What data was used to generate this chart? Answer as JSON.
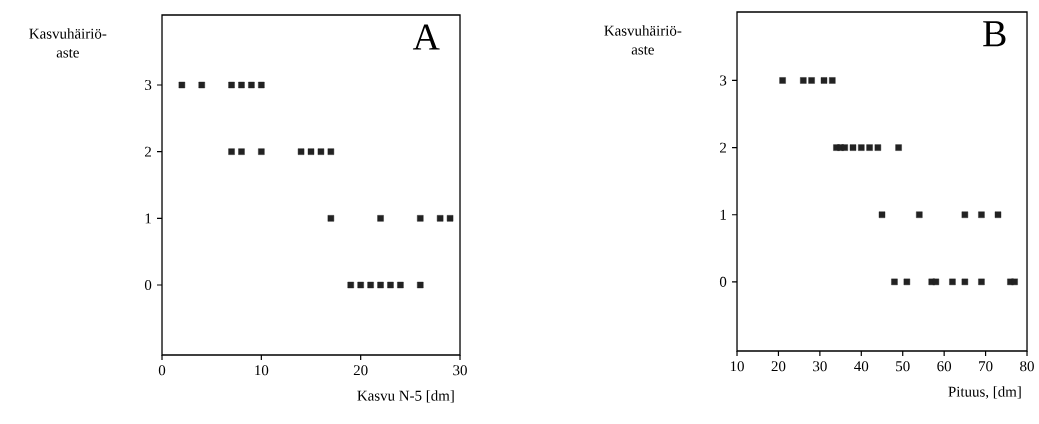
{
  "chart_data": [
    {
      "type": "scatter",
      "title": "A",
      "xlabel": "Kasvu N-5 [dm]",
      "ylabel": "Kasvuhäiriö-aste",
      "marker": "square",
      "color": "#222222",
      "x": [
        2,
        4,
        7,
        8,
        9,
        10,
        7,
        8,
        10,
        14,
        15,
        16,
        17,
        17,
        22,
        26,
        28,
        29,
        19,
        20,
        21,
        22,
        23,
        24,
        26
      ],
      "values": [
        3,
        3,
        3,
        3,
        3,
        3,
        2,
        2,
        2,
        2,
        2,
        2,
        2,
        1,
        1,
        1,
        1,
        1,
        0,
        0,
        0,
        0,
        0,
        0,
        0
      ],
      "xlim": [
        0,
        30
      ],
      "ylim": [
        -1.05,
        4.05
      ],
      "xticks": [
        0,
        10,
        20,
        30
      ],
      "yticks": [
        0,
        1,
        2,
        3
      ]
    },
    {
      "type": "scatter",
      "title": "B",
      "xlabel": "Pituus, [dm]",
      "ylabel": "Kasvuhäiriö-aste",
      "marker": "square",
      "color": "#222222",
      "x": [
        21,
        26,
        28,
        31,
        33,
        34,
        35,
        36,
        38,
        40,
        42,
        44,
        49,
        45,
        54,
        65,
        69,
        73,
        48,
        51,
        57,
        58,
        62,
        65,
        69,
        76,
        77
      ],
      "values": [
        3,
        3,
        3,
        3,
        3,
        2,
        2,
        2,
        2,
        2,
        2,
        2,
        2,
        1,
        1,
        1,
        1,
        1,
        0,
        0,
        0,
        0,
        0,
        0,
        0,
        0,
        0
      ],
      "xlim": [
        10,
        80
      ],
      "ylim": [
        -1.03,
        4.02
      ],
      "xticks": [
        10,
        20,
        30,
        40,
        50,
        60,
        70,
        80
      ],
      "yticks": [
        0,
        1,
        2,
        3
      ]
    }
  ]
}
